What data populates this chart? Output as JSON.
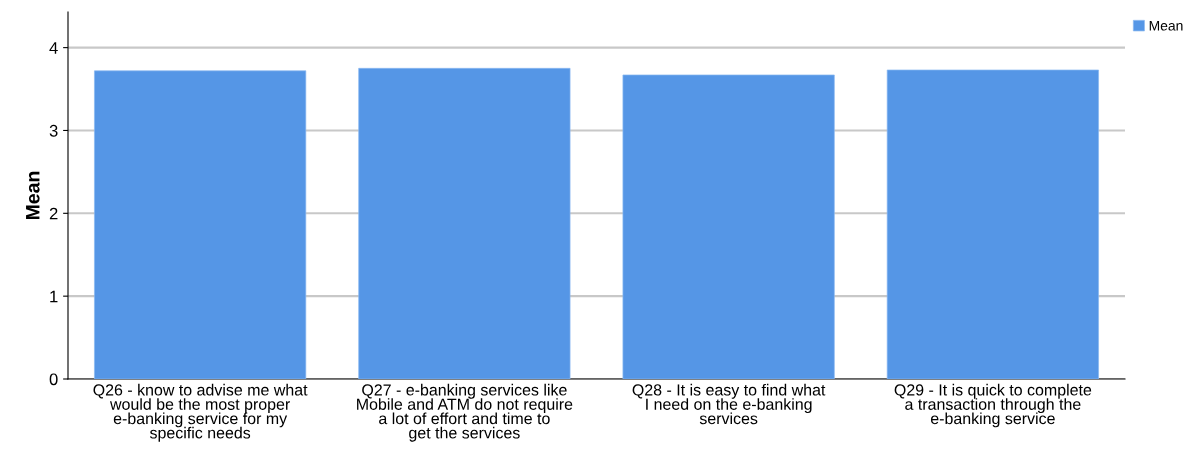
{
  "chart_data": {
    "type": "bar",
    "ylabel": "Mean",
    "categories": [
      "Q26 - know to advise me what would be the most proper e-banking service for my specific needs",
      "Q27 - e-banking services like Mobile and ATM do not require a lot of effort and time to get the services",
      "Q28 - It is easy to find what I need on the e-banking services",
      "Q29 - It is quick to complete a transaction through the e-banking service"
    ],
    "series": [
      {
        "name": "Mean",
        "color": "#5596e6",
        "values": [
          3.72,
          3.75,
          3.67,
          3.73
        ]
      }
    ],
    "ylim": [
      0,
      4.43
    ],
    "yticks": [
      0,
      1,
      2,
      3,
      4
    ],
    "grid": "y",
    "legend": "top right"
  }
}
